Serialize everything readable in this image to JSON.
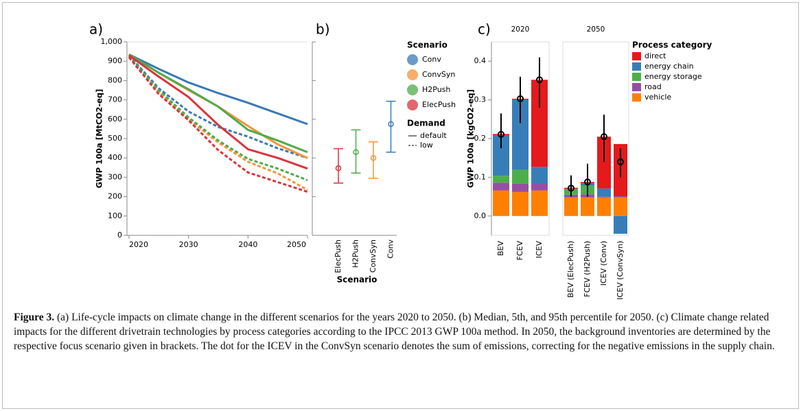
{
  "chart_data": [
    {
      "type": "line",
      "panel": "a)",
      "ylabel": "GWP 100a [MtCO2-eq]",
      "x": [
        2020,
        2025,
        2030,
        2035,
        2040,
        2045,
        2050
      ],
      "xlim": [
        2020,
        2050
      ],
      "xticks": [
        2020,
        2030,
        2040,
        2050
      ],
      "ylim": [
        0,
        1000
      ],
      "yticks": [
        0,
        100,
        200,
        300,
        400,
        500,
        600,
        700,
        800,
        900,
        {
          "value": 1000,
          "label": "1,000"
        }
      ],
      "legend_title": "Scenario",
      "demand_title": "Demand",
      "demands": [
        {
          "name": "default",
          "dashed": false
        },
        {
          "name": "low",
          "dashed": true
        }
      ],
      "series": [
        {
          "name": "Conv",
          "color": "#3a78b6",
          "values": {
            "default": [
              935,
              860,
              790,
              735,
              685,
              630,
              575
            ],
            "low": [
              930,
              760,
              640,
              560,
              510,
              450,
              400
            ]
          }
        },
        {
          "name": "ConvSyn",
          "color": "#f7923a",
          "values": {
            "default": [
              935,
              840,
              750,
              665,
              565,
              470,
              400
            ],
            "low": [
              925,
              740,
              600,
              480,
              380,
              320,
              235
            ]
          }
        },
        {
          "name": "H2Push",
          "color": "#4dab4a",
          "values": {
            "default": [
              935,
              840,
              755,
              665,
              545,
              490,
              430
            ],
            "low": [
              925,
              750,
              610,
              490,
              395,
              345,
              285
            ]
          }
        },
        {
          "name": "ElecPush",
          "color": "#d9343c",
          "values": {
            "default": [
              930,
              820,
              715,
              570,
              445,
              400,
              345
            ],
            "low": [
              920,
              730,
              595,
              440,
              325,
              275,
              225
            ]
          }
        }
      ]
    },
    {
      "type": "errorbar",
      "panel": "b)",
      "xlabel": "Scenario",
      "categories": [
        "ElecPush",
        "H2Push",
        "ConvSyn",
        "Conv"
      ],
      "colors": [
        "#d9343c",
        "#4dab4a",
        "#f7923a",
        "#3a78b6"
      ],
      "values": [
        347,
        430,
        400,
        575
      ],
      "lower": [
        270,
        322,
        295,
        430
      ],
      "upper": [
        448,
        545,
        483,
        693
      ],
      "ylim": [
        0,
        1000
      ],
      "yticks": [
        0,
        200,
        400,
        600,
        800,
        1000
      ]
    },
    {
      "type": "stacked_bar",
      "panel": "c)",
      "title": "2020",
      "ylabel": "GWP 100a [kgCO2-eq]",
      "categories": [
        "BEV",
        "FCEV",
        "ICEV"
      ],
      "ylim": [
        -0.05,
        0.45
      ],
      "yticks": [
        {
          "value": 0,
          "label": "0.0"
        },
        0.1,
        0.2,
        0.3,
        0.4
      ],
      "series": [
        {
          "color": "#e41a1c",
          "values": [
            0.003,
            0.002,
            0.225
          ]
        },
        {
          "color": "#377eb8",
          "values": [
            0.105,
            0.182,
            0.044
          ]
        },
        {
          "color": "#4daf4a",
          "values": [
            0.018,
            0.036,
            0
          ]
        },
        {
          "color": "#984ea3",
          "values": [
            0.02,
            0.021,
            0.017
          ]
        },
        {
          "color": "#ff7f00",
          "values": [
            0.066,
            0.062,
            0.066
          ]
        }
      ],
      "totals": [
        0.211,
        0.303,
        0.352
      ],
      "totals_lower": [
        0.175,
        0.24,
        0.28
      ],
      "totals_upper": [
        0.265,
        0.36,
        0.41
      ]
    },
    {
      "type": "stacked_bar",
      "title": "2050",
      "legend_title": "Process category",
      "categories": [
        "BEV (ElecPush)",
        "FCEV (H2Push)",
        "ICEV (Conv)",
        "ICEV (ConvSyn)"
      ],
      "ylim": [
        -0.05,
        0.45
      ],
      "series": [
        {
          "name": "direct",
          "color": "#e41a1c",
          "values": [
            0.003,
            0.003,
            0.134,
            0.135
          ]
        },
        {
          "name": "energy chain",
          "color": "#377eb8",
          "values": [
            0.001,
            0.007,
            0.021,
            -0.046
          ]
        },
        {
          "name": "energy storage",
          "color": "#4daf4a",
          "values": [
            0.014,
            0.022,
            0,
            0
          ]
        },
        {
          "name": "road",
          "color": "#984ea3",
          "values": [
            0.007,
            0.008,
            0.002,
            0.003
          ]
        },
        {
          "name": "vehicle",
          "color": "#ff7f00",
          "values": [
            0.048,
            0.048,
            0.048,
            0.048
          ]
        }
      ],
      "totals": [
        0.072,
        0.088,
        0.205,
        0.14
      ],
      "totals_lower": [
        0.05,
        0.05,
        0.14,
        0.1
      ],
      "totals_upper": [
        0.105,
        0.135,
        0.262,
        0.175
      ]
    }
  ],
  "caption": {
    "label": "Figure 3.",
    "text": "(a) Life-cycle impacts on climate change in the different scenarios for the years 2020 to 2050. (b) Median, 5th, and 95th percentile for 2050. (c) Climate change related impacts for the different drivetrain technologies by process categories according to the IPCC 2013 GWP 100a method. In 2050, the background inventories are determined by the respective focus scenario given in brackets. The dot for the ICEV in the ConvSyn scenario denotes the sum of emissions, correcting for the negative emissions in the supply chain."
  }
}
